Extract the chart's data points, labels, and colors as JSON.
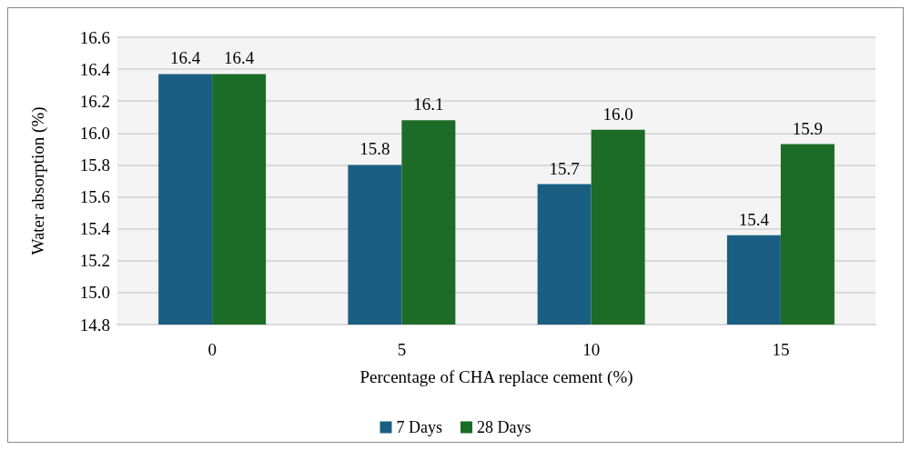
{
  "chart_data": {
    "type": "bar",
    "xlabel": "Percentage of CHA replace cement (%)",
    "ylabel": "Water absorption (%)",
    "categories": [
      "0",
      "5",
      "10",
      "15"
    ],
    "series": [
      {
        "name": "7 Days",
        "color": "#1a5f83",
        "values": [
          16.37,
          15.8,
          15.68,
          15.36
        ],
        "value_labels": [
          "16.4",
          "15.8",
          "15.7",
          "15.4"
        ]
      },
      {
        "name": "28 Days",
        "color": "#1c6b26",
        "values": [
          16.37,
          16.08,
          16.02,
          15.93
        ],
        "value_labels": [
          "16.4",
          "16.1",
          "16.0",
          "15.9"
        ]
      }
    ],
    "ylim": [
      14.8,
      16.6
    ],
    "yticks": [
      {
        "value": 14.8,
        "label": "14.8"
      },
      {
        "value": 15.0,
        "label": "15.0"
      },
      {
        "value": 15.2,
        "label": "15.2"
      },
      {
        "value": 15.4,
        "label": "15.4"
      },
      {
        "value": 15.6,
        "label": "15.6"
      },
      {
        "value": 15.8,
        "label": "15.8"
      },
      {
        "value": 16.0,
        "label": "16.0"
      },
      {
        "value": 16.2,
        "label": "16.2"
      },
      {
        "value": 16.4,
        "label": "16.4"
      },
      {
        "value": 16.6,
        "label": "16.6"
      }
    ],
    "grid": "y",
    "legend": "bottom"
  }
}
